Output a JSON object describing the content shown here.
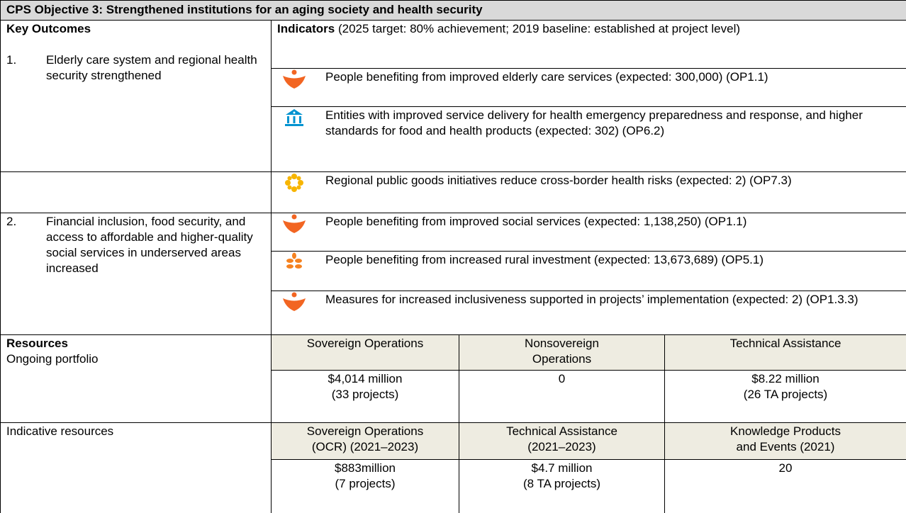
{
  "title": "CPS Objective 3: Strengthened institutions for an aging society and health security",
  "key_outcomes_label": "Key Outcomes",
  "indicators_label": "Indicators",
  "indicators_note": "(2025 target: 80% achievement; 2019 baseline: established at project level)",
  "outcomes": [
    {
      "number": "1.",
      "text": "Elderly care system and regional health security strengthened"
    },
    {
      "number": "2.",
      "text": "Financial inclusion, food security, and access to affordable and higher-quality social services in underserved areas increased"
    }
  ],
  "indicators": [
    "People benefiting from improved elderly care services (expected: 300,000) (OP1.1)",
    "Entities with improved service delivery for health emergency preparedness and response, and higher standards for food and health products (expected: 302) (OP6.2)",
    "Regional public goods initiatives reduce cross-border health risks (expected: 2) (OP7.3)",
    "People benefiting from improved social services (expected: 1,138,250) (OP1.1)",
    "People benefiting from increased rural investment (expected: 13,673,689) (OP5.1)",
    "Measures for increased inclusiveness supported in projects’ implementation (expected: 2) (OP1.3.3)"
  ],
  "resources": {
    "label": "Resources",
    "ongoing": {
      "label": "Ongoing portfolio",
      "headers": [
        [
          "Sovereign Operations"
        ],
        [
          "Nonsovereign",
          "Operations"
        ],
        [
          "Technical Assistance"
        ]
      ],
      "values": [
        [
          "$4,014 million",
          "(33 projects)"
        ],
        [
          "0"
        ],
        [
          "$8.22 million",
          "(26 TA projects)"
        ]
      ]
    },
    "indicative": {
      "label": "Indicative resources",
      "headers": [
        [
          "Sovereign Operations",
          "(OCR) (2021–2023)"
        ],
        [
          "Technical Assistance",
          "(2021–2023)"
        ],
        [
          "Knowledge Products",
          "and Events (2021)"
        ]
      ],
      "values": [
        [
          "$883million",
          "(7 projects)"
        ],
        [
          "$4.7 million",
          "(8 TA projects)"
        ],
        [
          "20"
        ]
      ]
    }
  }
}
